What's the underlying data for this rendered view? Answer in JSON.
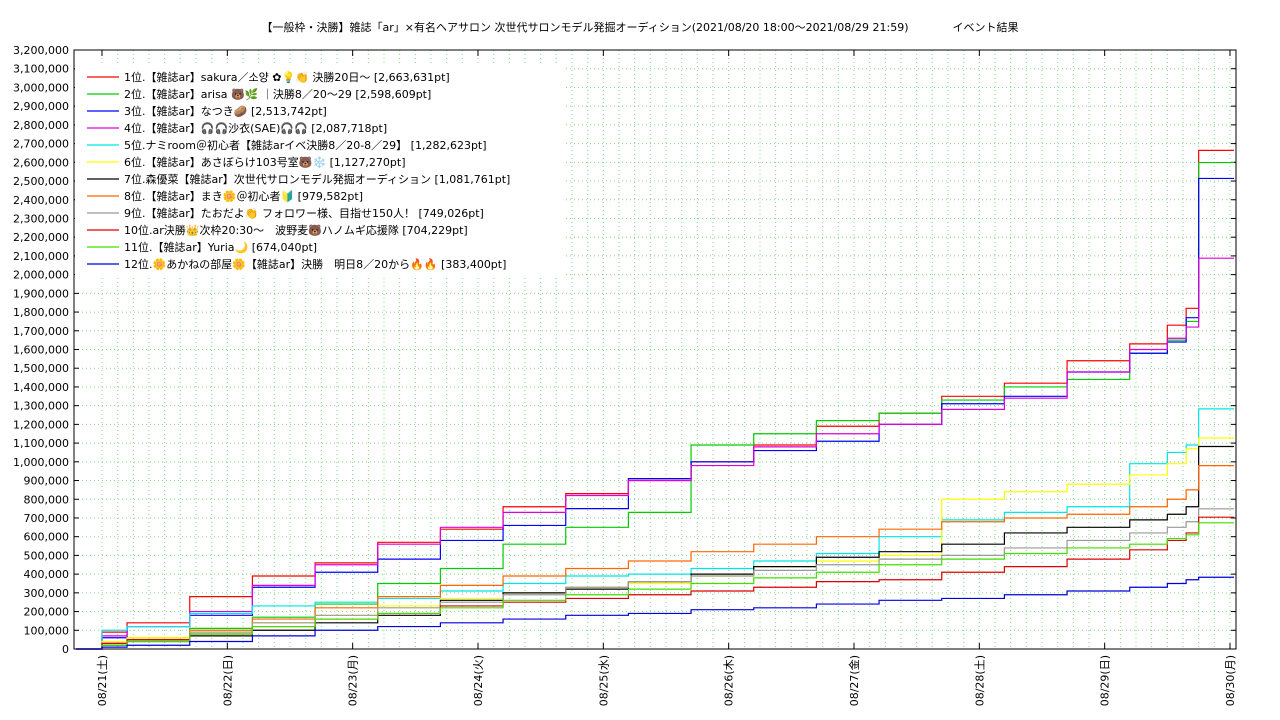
{
  "chart_data": {
    "type": "line",
    "title": "【一般枠・決勝】雑誌「ar」×有名ヘアサロン 次世代サロンモデル発掘オーディション(2021/08/20 18:00〜2021/08/29 21:59)　　　　イベント結果",
    "xlabel": "",
    "ylabel": "",
    "ylim": [
      0,
      3200000
    ],
    "yticks": [
      "0",
      "100,000",
      "200,000",
      "300,000",
      "400,000",
      "500,000",
      "600,000",
      "700,000",
      "800,000",
      "900,000",
      "1,000,000",
      "1,100,000",
      "1,200,000",
      "1,300,000",
      "1,400,000",
      "1,500,000",
      "1,600,000",
      "1,700,000",
      "1,800,000",
      "1,900,000",
      "2,000,000",
      "2,100,000",
      "2,200,000",
      "2,300,000",
      "2,400,000",
      "2,500,000",
      "2,600,000",
      "2,700,000",
      "2,800,000",
      "2,900,000",
      "3,000,000",
      "3,100,000",
      "3,200,000"
    ],
    "xticks": [
      "08/21(土)",
      "08/22(日)",
      "08/23(月)",
      "08/24(火)",
      "08/25(水)",
      "08/26(木)",
      "08/27(金)",
      "08/28(土)",
      "08/29(日)",
      "08/30(月)"
    ],
    "grid": true,
    "legend_position": "top-left",
    "series": [
      {
        "name": "1位.【雑誌ar】sakura／소양 ✿💡👏 決勝20日〜 [2,663,631pt]",
        "color": "#ff0000",
        "x": [
          0,
          0.3,
          0.5,
          1,
          1.5,
          2,
          2.5,
          3,
          3.5,
          4,
          4.5,
          5,
          5.5,
          6,
          6.5,
          7,
          7.5,
          8,
          8.5,
          8.8,
          8.95,
          9.05
        ],
        "y": [
          0,
          90000,
          140000,
          280000,
          390000,
          460000,
          570000,
          640000,
          760000,
          830000,
          900000,
          1000000,
          1090000,
          1190000,
          1260000,
          1350000,
          1420000,
          1540000,
          1630000,
          1730000,
          1820000,
          2663631
        ]
      },
      {
        "name": "2位.【雑誌ar】arisa 🐻🌿 ｜決勝8／20〜29 [2,598,609pt]",
        "color": "#00cc00",
        "x": [
          0,
          0.3,
          0.5,
          1,
          1.5,
          2,
          2.5,
          3,
          3.5,
          4,
          4.5,
          5,
          5.5,
          6,
          6.5,
          7,
          7.5,
          8,
          8.5,
          8.8,
          8.95,
          9.05
        ],
        "y": [
          0,
          30000,
          60000,
          110000,
          170000,
          240000,
          350000,
          430000,
          560000,
          650000,
          730000,
          1090000,
          1150000,
          1220000,
          1260000,
          1330000,
          1400000,
          1440000,
          1580000,
          1650000,
          1750000,
          2598609
        ]
      },
      {
        "name": "3位.【雑誌ar】なつき🥔 [2,513,742pt]",
        "color": "#0000ff",
        "x": [
          0,
          0.3,
          0.5,
          1,
          1.5,
          2,
          2.5,
          3,
          3.5,
          4,
          4.5,
          5,
          5.5,
          6,
          6.5,
          7,
          7.5,
          8,
          8.5,
          8.8,
          8.95,
          9.05
        ],
        "y": [
          0,
          60000,
          120000,
          180000,
          330000,
          410000,
          480000,
          580000,
          660000,
          750000,
          910000,
          1000000,
          1060000,
          1110000,
          1200000,
          1310000,
          1350000,
          1480000,
          1580000,
          1640000,
          1770000,
          2513742
        ]
      },
      {
        "name": "4位.【雑誌ar】🎧🎧沙衣(SAE)🎧🎧 [2,087,718pt]",
        "color": "#dd00dd",
        "x": [
          0,
          0.3,
          0.5,
          1,
          1.5,
          2,
          2.5,
          3,
          3.5,
          4,
          4.5,
          5,
          5.5,
          6,
          6.5,
          7,
          7.5,
          8,
          8.5,
          8.8,
          8.95,
          9.05
        ],
        "y": [
          0,
          70000,
          120000,
          200000,
          340000,
          450000,
          560000,
          650000,
          730000,
          820000,
          900000,
          980000,
          1080000,
          1150000,
          1200000,
          1280000,
          1340000,
          1480000,
          1600000,
          1660000,
          1720000,
          2087718
        ]
      },
      {
        "name": "5位.ナミroom＠初心者【雑誌arイベ決勝8／20-8／29】 [1,282,623pt]",
        "color": "#00e5e5",
        "x": [
          0,
          0.3,
          0.5,
          1,
          1.5,
          2,
          2.5,
          3,
          3.5,
          4,
          4.5,
          5,
          5.5,
          6,
          6.5,
          7,
          7.5,
          8,
          8.5,
          8.8,
          8.95,
          9.05
        ],
        "y": [
          0,
          100000,
          120000,
          190000,
          230000,
          250000,
          270000,
          310000,
          350000,
          390000,
          400000,
          430000,
          470000,
          510000,
          600000,
          690000,
          730000,
          760000,
          990000,
          1050000,
          1090000,
          1282623
        ]
      },
      {
        "name": "6位.【雑誌ar】あさぼらけ103号室🐻❄️ [1,127,270pt]",
        "color": "#ffff00",
        "x": [
          0,
          0.3,
          0.5,
          1,
          1.5,
          2,
          2.5,
          3,
          3.5,
          4,
          4.5,
          5,
          5.5,
          6,
          6.5,
          7,
          7.5,
          8,
          8.5,
          8.8,
          8.95,
          9.05
        ],
        "y": [
          0,
          40000,
          60000,
          100000,
          140000,
          180000,
          230000,
          270000,
          300000,
          330000,
          350000,
          390000,
          440000,
          470000,
          500000,
          800000,
          840000,
          880000,
          930000,
          990000,
          1070000,
          1127270
        ]
      },
      {
        "name": "7位.森優菜【雑誌ar】次世代サロンモデル発掘オーディション [1,081,761pt]",
        "color": "#000000",
        "x": [
          0,
          0.3,
          0.5,
          1,
          1.5,
          2,
          2.5,
          3,
          3.5,
          4,
          4.5,
          5,
          5.5,
          6,
          6.5,
          7,
          7.5,
          8,
          8.5,
          8.8,
          8.95,
          9.05
        ],
        "y": [
          0,
          20000,
          40000,
          70000,
          100000,
          140000,
          180000,
          260000,
          300000,
          320000,
          360000,
          400000,
          440000,
          490000,
          520000,
          560000,
          620000,
          650000,
          690000,
          720000,
          760000,
          1081761
        ]
      },
      {
        "name": "8位.【雑誌ar】まき🌼＠初心者🔰 [979,582pt]",
        "color": "#ff6600",
        "x": [
          0,
          0.3,
          0.5,
          1,
          1.5,
          2,
          2.5,
          3,
          3.5,
          4,
          4.5,
          5,
          5.5,
          6,
          6.5,
          7,
          7.5,
          8,
          8.5,
          8.8,
          8.95,
          9.05
        ],
        "y": [
          0,
          30000,
          50000,
          100000,
          160000,
          220000,
          280000,
          340000,
          390000,
          430000,
          470000,
          520000,
          560000,
          600000,
          640000,
          680000,
          700000,
          720000,
          760000,
          800000,
          850000,
          979582
        ]
      },
      {
        "name": "9位.【雑誌ar】たおだよ👏 フォロワー様、目指せ150人！ [749,026pt]",
        "color": "#999999",
        "x": [
          0,
          0.3,
          0.5,
          1,
          1.5,
          2,
          2.5,
          3,
          3.5,
          4,
          4.5,
          5,
          5.5,
          6,
          6.5,
          7,
          7.5,
          8,
          8.5,
          8.8,
          8.95,
          9.05
        ],
        "y": [
          0,
          30000,
          50000,
          90000,
          140000,
          180000,
          220000,
          250000,
          290000,
          330000,
          360000,
          390000,
          420000,
          450000,
          480000,
          500000,
          540000,
          580000,
          620000,
          650000,
          680000,
          749026
        ]
      },
      {
        "name": "10位.ar決勝👑次枠20:30〜　波野麦🐻ハノムギ応援隊 [704,229pt]",
        "color": "#dd0000",
        "x": [
          0,
          0.3,
          0.5,
          1,
          1.5,
          2,
          2.5,
          3,
          3.5,
          4,
          4.5,
          5,
          5.5,
          6,
          6.5,
          7,
          7.5,
          8,
          8.5,
          8.8,
          8.95,
          9.05
        ],
        "y": [
          0,
          30000,
          50000,
          80000,
          120000,
          160000,
          190000,
          230000,
          250000,
          270000,
          290000,
          310000,
          330000,
          360000,
          370000,
          410000,
          440000,
          480000,
          530000,
          580000,
          620000,
          704229
        ]
      },
      {
        "name": "11位.【雑誌ar】Yuria🌙 [674,040pt]",
        "color": "#44dd00",
        "x": [
          0,
          0.3,
          0.5,
          1,
          1.5,
          2,
          2.5,
          3,
          3.5,
          4,
          4.5,
          5,
          5.5,
          6,
          6.5,
          7,
          7.5,
          8,
          8.5,
          8.8,
          8.95,
          9.05
        ],
        "y": [
          0,
          20000,
          40000,
          80000,
          120000,
          160000,
          190000,
          220000,
          260000,
          290000,
          320000,
          350000,
          380000,
          410000,
          450000,
          480000,
          510000,
          540000,
          560000,
          590000,
          610000,
          674040
        ]
      },
      {
        "name": "12位.🌼あかねの部屋🌼【雑誌ar】決勝　明日8／20から🔥🔥 [383,400pt]",
        "color": "#0000dd",
        "x": [
          0,
          0.3,
          0.5,
          1,
          1.5,
          2,
          2.5,
          3,
          3.5,
          4,
          4.5,
          5,
          5.5,
          6,
          6.5,
          7,
          7.5,
          8,
          8.5,
          8.8,
          8.95,
          9.05
        ],
        "y": [
          0,
          10000,
          20000,
          40000,
          70000,
          100000,
          120000,
          140000,
          160000,
          180000,
          190000,
          210000,
          220000,
          240000,
          260000,
          270000,
          290000,
          310000,
          330000,
          350000,
          370000,
          383400
        ]
      }
    ]
  }
}
